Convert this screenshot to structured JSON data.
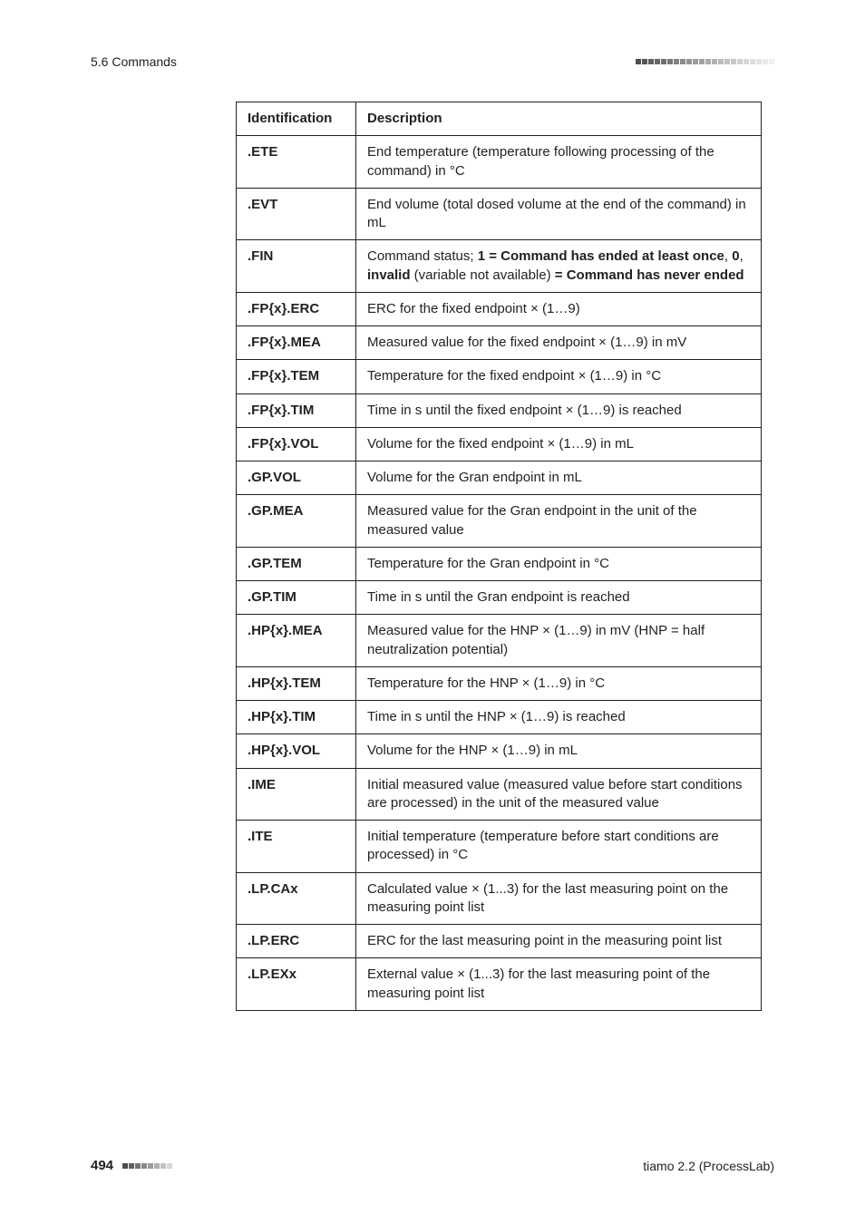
{
  "header": {
    "section": "5.6 Commands",
    "square_colors": [
      "#4d4d4d",
      "#555555",
      "#5e5e5e",
      "#676767",
      "#707070",
      "#787878",
      "#818181",
      "#8a8a8a",
      "#929292",
      "#9b9b9b",
      "#a3a3a3",
      "#ababab",
      "#b3b3b3",
      "#bbbbbb",
      "#c2c2c2",
      "#c9c9c9",
      "#d0d0d0",
      "#d7d7d7",
      "#dddddd",
      "#e3e3e3",
      "#e9e9e9",
      "#efefef"
    ]
  },
  "table": {
    "columns": {
      "identification": "Identification",
      "description": "Description"
    },
    "rows": [
      {
        "id": ".ETE",
        "desc": [
          {
            "t": "End temperature (temperature following processing of the command) in °C"
          }
        ]
      },
      {
        "id": ".EVT",
        "desc": [
          {
            "t": "End volume (total dosed volume at the end of the command) in mL"
          }
        ]
      },
      {
        "id": ".FIN",
        "desc": [
          {
            "t": "Command status; "
          },
          {
            "t": "1 = Command has ended at least once",
            "b": true
          },
          {
            "t": ", "
          },
          {
            "t": "0",
            "b": true
          },
          {
            "t": ", "
          },
          {
            "t": "invalid",
            "b": true
          },
          {
            "t": " (variable not available) "
          },
          {
            "t": "= Command has never ended",
            "b": true
          }
        ]
      },
      {
        "id": ".FP{x}.ERC",
        "desc": [
          {
            "t": "ERC for the fixed endpoint × (1…9)"
          }
        ]
      },
      {
        "id": ".FP{x}.MEA",
        "desc": [
          {
            "t": "Measured value for the fixed endpoint × (1…9) in mV"
          }
        ]
      },
      {
        "id": ".FP{x}.TEM",
        "desc": [
          {
            "t": "Temperature for the fixed endpoint × (1…9) in °C"
          }
        ]
      },
      {
        "id": ".FP{x}.TIM",
        "desc": [
          {
            "t": "Time in s until the fixed endpoint × (1…9) is reached"
          }
        ]
      },
      {
        "id": ".FP{x}.VOL",
        "desc": [
          {
            "t": "Volume for the fixed endpoint × (1…9) in mL"
          }
        ]
      },
      {
        "id": ".GP.VOL",
        "desc": [
          {
            "t": "Volume for the Gran endpoint in mL"
          }
        ]
      },
      {
        "id": ".GP.MEA",
        "desc": [
          {
            "t": "Measured value for the Gran endpoint in the unit of the measured value"
          }
        ]
      },
      {
        "id": ".GP.TEM",
        "desc": [
          {
            "t": "Temperature for the Gran endpoint in °C"
          }
        ]
      },
      {
        "id": ".GP.TIM",
        "desc": [
          {
            "t": "Time in s until the Gran endpoint is reached"
          }
        ]
      },
      {
        "id": ".HP{x}.MEA",
        "desc": [
          {
            "t": "Measured value for the HNP × (1…9) in mV (HNP = half neutralization potential)"
          }
        ]
      },
      {
        "id": ".HP{x}.TEM",
        "desc": [
          {
            "t": "Temperature for the HNP × (1…9) in °C"
          }
        ]
      },
      {
        "id": ".HP{x}.TIM",
        "desc": [
          {
            "t": "Time in s until the HNP × (1…9) is reached"
          }
        ]
      },
      {
        "id": ".HP{x}.VOL",
        "desc": [
          {
            "t": "Volume for the HNP × (1…9) in mL"
          }
        ]
      },
      {
        "id": ".IME",
        "desc": [
          {
            "t": "Initial measured value (measured value before start conditions are processed) in the unit of the measured value"
          }
        ]
      },
      {
        "id": ".ITE",
        "desc": [
          {
            "t": "Initial temperature (temperature before start conditions are processed) in °C"
          }
        ]
      },
      {
        "id": ".LP.CAx",
        "desc": [
          {
            "t": "Calculated value × (1...3) for the last measuring point on the measuring point list"
          }
        ]
      },
      {
        "id": ".LP.ERC",
        "desc": [
          {
            "t": "ERC for the last measuring point in the measuring point list"
          }
        ]
      },
      {
        "id": ".LP.EXx",
        "desc": [
          {
            "t": "External value × (1...3) for the last measuring point of the measuring point list"
          }
        ]
      }
    ]
  },
  "footer": {
    "page_number": "494",
    "square_colors": [
      "#4d4d4d",
      "#606060",
      "#747474",
      "#888888",
      "#9b9b9b",
      "#afafaf",
      "#c2c2c2",
      "#d6d6d6"
    ],
    "doc_ref": "tiamo 2.2 (ProcessLab)"
  }
}
